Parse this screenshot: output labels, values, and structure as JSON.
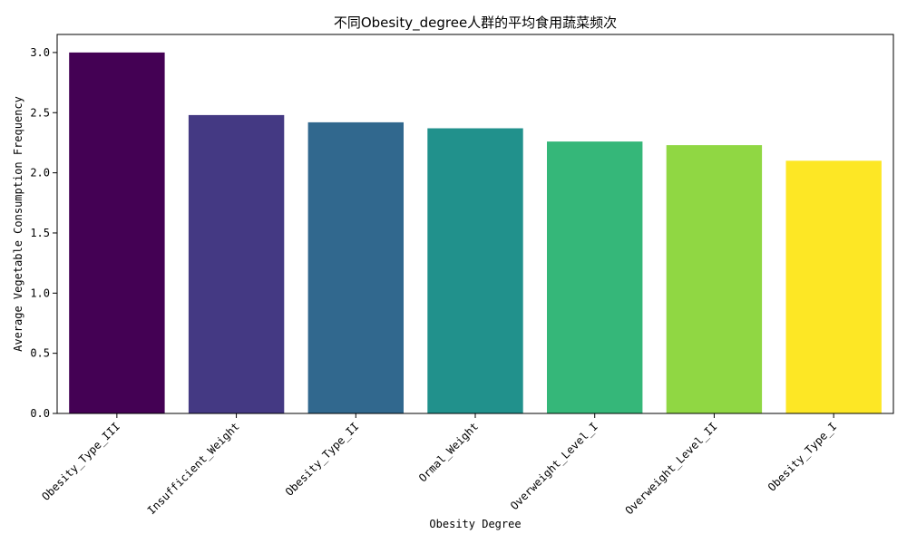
{
  "chart_data": {
    "type": "bar",
    "title": "不同Obesity_degree人群的平均食用蔬菜频次",
    "xlabel": "Obesity Degree",
    "ylabel": "Average Vegetable Consumption Frequency",
    "categories": [
      "Obesity_Type_III",
      "Insufficient_Weight",
      "Obesity_Type_II",
      "Ormal_Weight",
      "Overweight_Level_I",
      "Overweight_Level_II",
      "Obesity_Type_I"
    ],
    "values": [
      3.0,
      2.48,
      2.42,
      2.37,
      2.26,
      2.23,
      2.1
    ],
    "colors": [
      "#440154",
      "#443983",
      "#31688e",
      "#21918c",
      "#35b779",
      "#90d743",
      "#fde725"
    ],
    "ylim": [
      0,
      3.15
    ],
    "yticks": [
      0.0,
      0.5,
      1.0,
      1.5,
      2.0,
      2.5,
      3.0
    ],
    "ytick_labels": [
      "0.0",
      "0.5",
      "1.0",
      "1.5",
      "2.0",
      "2.5",
      "3.0"
    ],
    "xtick_rotation": 45,
    "grid": false,
    "legend": "none"
  }
}
